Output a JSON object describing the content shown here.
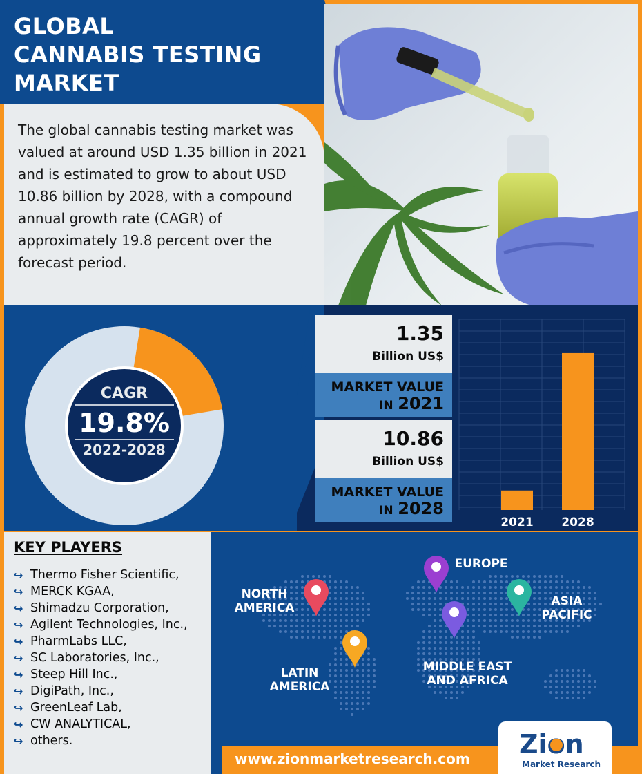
{
  "title": "GLOBAL\nCANNABIS TESTING\nMARKET",
  "summary": "The global cannabis testing market was valued at around USD 1.35 billion in 2021 and is estimated to grow to about USD 10.86 billion by 2028, with a compound annual growth rate (CAGR) of approximately 19.8 percent over the forecast period.",
  "cagr": {
    "label": "CAGR",
    "value": "19.8%",
    "period": "2022-2028",
    "fraction": 0.198
  },
  "market": [
    {
      "value": "1.35",
      "unit": "Billion US$",
      "label_line1": "MARKET VALUE",
      "label_in": "IN",
      "label_year": "2021"
    },
    {
      "value": "10.86",
      "unit": "Billion US$",
      "label_line1": "MARKET VALUE",
      "label_in": "IN",
      "label_year": "2028"
    }
  ],
  "chart_data": {
    "type": "bar",
    "categories": [
      "2021",
      "2028"
    ],
    "values": [
      1.35,
      10.86
    ],
    "title": "",
    "xlabel": "",
    "ylabel": "",
    "bar_color": "#f7941d"
  },
  "key_players": {
    "title": "KEY PLAYERS",
    "items": [
      "Thermo Fisher Scientific,",
      "MERCK KGAA,",
      "Shimadzu Corporation,",
      "Agilent Technologies, Inc.,",
      "PharmLabs LLC,",
      "SC Laboratories, Inc.,",
      "Steep Hill Inc.,",
      "DigiPath, Inc.,",
      "GreenLeaf Lab,",
      "CW ANALYTICAL,",
      "others."
    ]
  },
  "regions": {
    "north_america": "NORTH\nAMERICA",
    "europe": "EUROPE",
    "asia_pacific": "ASIA\nPACIFIC",
    "latin_america": "LATIN\nAMERICA",
    "mea": "MIDDLE EAST\nAND AFRICA"
  },
  "pin_colors": {
    "north_america": "#e84a5f",
    "europe": "#9b3fd1",
    "asia_pacific": "#2bb5a0",
    "latin_america": "#f7a823",
    "mea": "#7b5be0"
  },
  "footer": {
    "url": "www.zionmarketresearch.com"
  },
  "logo": {
    "name": "Zion",
    "sub": "Market Research"
  },
  "colors": {
    "primary": "#0d4a8f",
    "accent": "#f7941d",
    "panel": "#e9ecee",
    "band": "#3f7fbd"
  }
}
